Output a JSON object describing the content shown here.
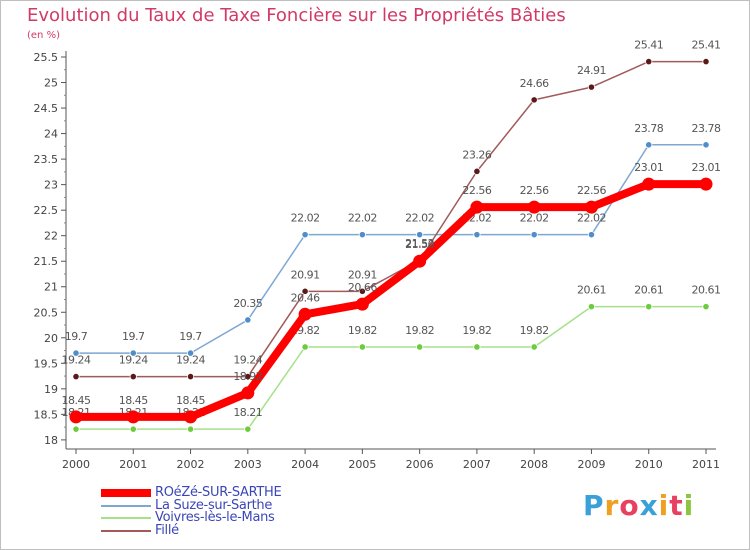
{
  "chart_data": {
    "type": "line",
    "title": "Evolution du Taux de Taxe Foncière sur les Propriétés Bâties",
    "ylabel": "(en %)",
    "xlabel": "",
    "x": [
      "2000",
      "2001",
      "2002",
      "2003",
      "2004",
      "2005",
      "2006",
      "2007",
      "2008",
      "2009",
      "2010",
      "2011"
    ],
    "ylim": [
      17.9,
      25.5
    ],
    "yticks": [
      18,
      18.5,
      19,
      19.5,
      20,
      20.5,
      21,
      21.5,
      22,
      22.5,
      23,
      23.5,
      24,
      24.5,
      25,
      25.5
    ],
    "ytick_labels": [
      "18",
      "18.5",
      "19",
      "19.5",
      "20",
      "20.5",
      "21",
      "21.5",
      "22",
      "22.5",
      "23",
      "23.5",
      "24",
      "24.5",
      "25",
      "25.5"
    ],
    "grid": false,
    "legend_position": "bottom-left",
    "series": [
      {
        "name": "La Suze-sur-Sarthe",
        "color": "#7fa8d0",
        "marker_color": "#4f8ecb",
        "line_width": "thin",
        "values": [
          19.7,
          19.7,
          19.7,
          20.35,
          22.02,
          22.02,
          22.02,
          22.02,
          22.02,
          22.02,
          23.78,
          23.78
        ],
        "labels": [
          "19.7",
          "19.7",
          "19.7",
          "20.35",
          "22.02",
          "22.02",
          "22.02",
          "22.02",
          "22.02",
          "22.02",
          "23.78",
          "23.78"
        ]
      },
      {
        "name": "Voivres-lès-le-Mans",
        "color": "#a6e08a",
        "marker_color": "#6ccc3c",
        "line_width": "thin",
        "values": [
          18.21,
          18.21,
          18.21,
          18.21,
          19.82,
          19.82,
          19.82,
          19.82,
          19.82,
          20.61,
          20.61,
          20.61
        ],
        "labels": [
          "18.21",
          "18.21",
          "18.21",
          "18.21",
          "19.82",
          "19.82",
          "19.82",
          "19.82",
          "19.82",
          "20.61",
          "20.61",
          "20.61"
        ]
      },
      {
        "name": "Fillé",
        "color": "#a05a5a",
        "marker_color": "#5a1a1a",
        "line_width": "thin",
        "values": [
          19.24,
          19.24,
          19.24,
          19.24,
          20.91,
          20.91,
          21.52,
          23.26,
          24.66,
          24.91,
          25.41,
          25.41
        ],
        "labels": [
          "19.24",
          "19.24",
          "19.24",
          "19.24",
          "20.91",
          "20.91",
          "21.52",
          "23.26",
          "24.66",
          "24.91",
          "25.41",
          "25.41"
        ]
      },
      {
        "name": "ROéZé-SUR-SARTHE",
        "color": "#ff0000",
        "marker_color": "#ff0000",
        "line_width": "thick",
        "values": [
          18.45,
          18.45,
          18.45,
          18.92,
          20.46,
          20.66,
          21.5,
          22.56,
          22.56,
          22.56,
          23.01,
          23.01
        ],
        "labels": [
          "18.45",
          "18.45",
          "18.45",
          "18.92",
          "20.46",
          "20.66",
          "21.50",
          "22.56",
          "22.56",
          "22.56",
          "23.01",
          "23.01"
        ]
      }
    ],
    "legend": [
      {
        "name": "ROéZé-SUR-SARTHE",
        "color": "#ff0000",
        "thick": true
      },
      {
        "name": "La Suze-sur-Sarthe",
        "color": "#7fa8d0",
        "thick": false
      },
      {
        "name": "Voivres-lès-le-Mans",
        "color": "#a6e08a",
        "thick": false
      },
      {
        "name": "Fillé",
        "color": "#a05a5a",
        "thick": false
      }
    ]
  },
  "logo": {
    "text": "Proxiti",
    "letters": [
      {
        "ch": "P",
        "color": "#3aa0d8"
      },
      {
        "ch": "r",
        "color": "#f0a020"
      },
      {
        "ch": "o",
        "color": "#e84060"
      },
      {
        "ch": "x",
        "color": "#3aa0d8"
      },
      {
        "ch": "i",
        "color": "#f0a020"
      },
      {
        "ch": "t",
        "color": "#e84060"
      },
      {
        "ch": "i",
        "color": "#8cc63f"
      }
    ]
  }
}
